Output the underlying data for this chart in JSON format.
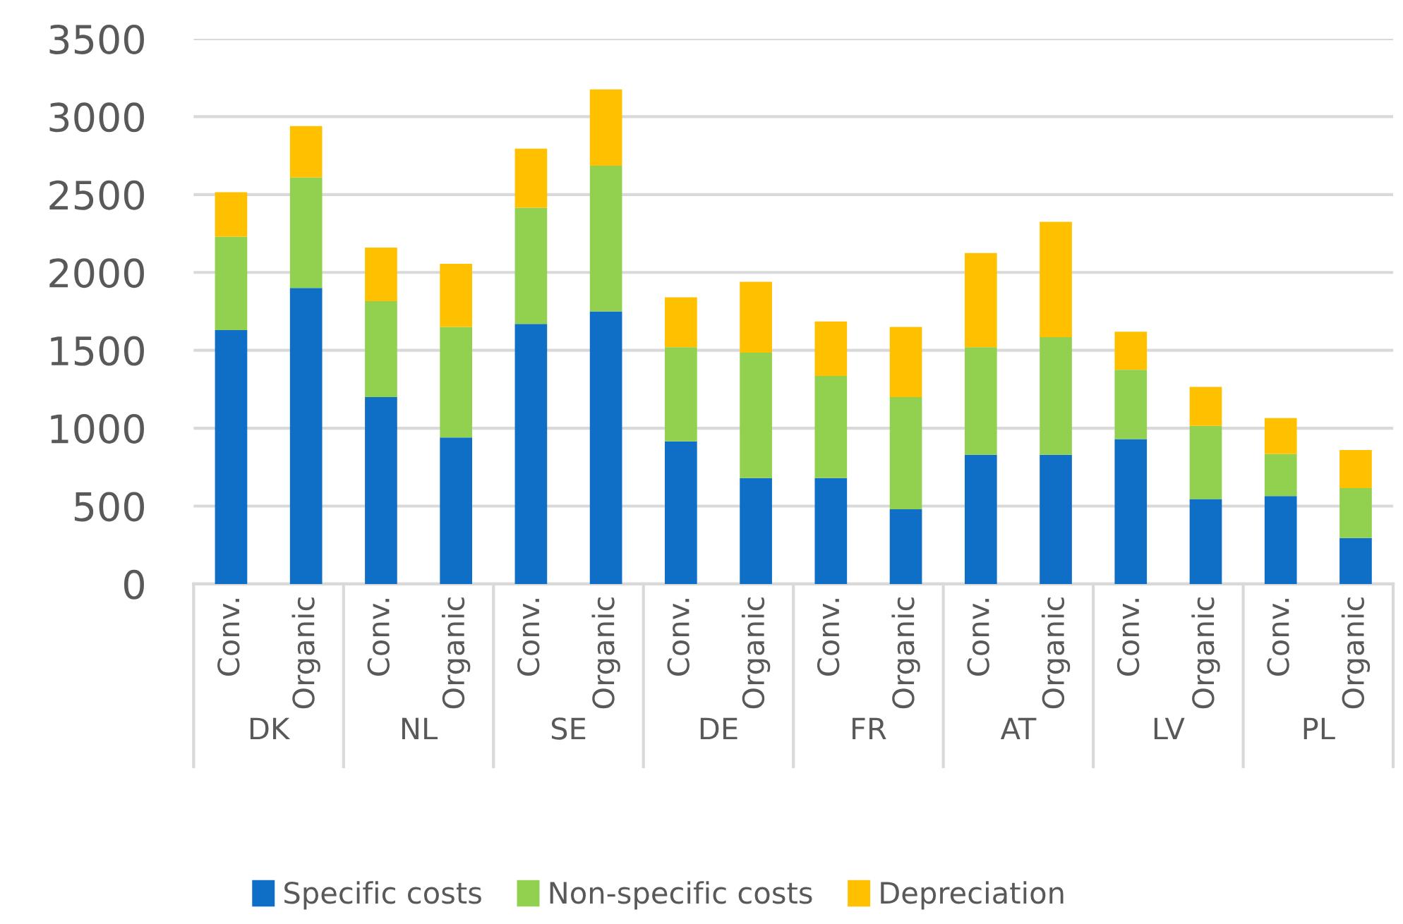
{
  "chart_data": {
    "type": "bar",
    "stacked": true,
    "categories": [
      "Conv.",
      "Organic",
      "Conv.",
      "Organic",
      "Conv.",
      "Organic",
      "Conv.",
      "Organic",
      "Conv.",
      "Organic",
      "Conv.",
      "Organic",
      "Conv.",
      "Organic",
      "Conv.",
      "Organic"
    ],
    "annotations": [
      "DK",
      "NL",
      "SE",
      "DE",
      "FR",
      "AT",
      "LV",
      "PL"
    ],
    "series": [
      {
        "name": "Specific costs",
        "color": "#0f6fc6",
        "values": [
          1630,
          1900,
          1200,
          940,
          1670,
          1750,
          915,
          680,
          680,
          480,
          830,
          830,
          930,
          545,
          565,
          295
        ]
      },
      {
        "name": "Non-specific costs",
        "color": "#92d050",
        "values": [
          600,
          710,
          615,
          710,
          745,
          935,
          605,
          805,
          655,
          720,
          690,
          755,
          445,
          470,
          270,
          320
        ]
      },
      {
        "name": "Depreciation",
        "color": "#ffc000",
        "values": [
          285,
          330,
          345,
          405,
          380,
          490,
          320,
          455,
          350,
          450,
          605,
          740,
          245,
          250,
          230,
          245
        ]
      }
    ],
    "ylim": [
      0,
      3500
    ],
    "yticks": [
      0,
      500,
      1000,
      1500,
      2000,
      2500,
      3000,
      3500
    ],
    "grid": "y",
    "legend": "bottom"
  }
}
